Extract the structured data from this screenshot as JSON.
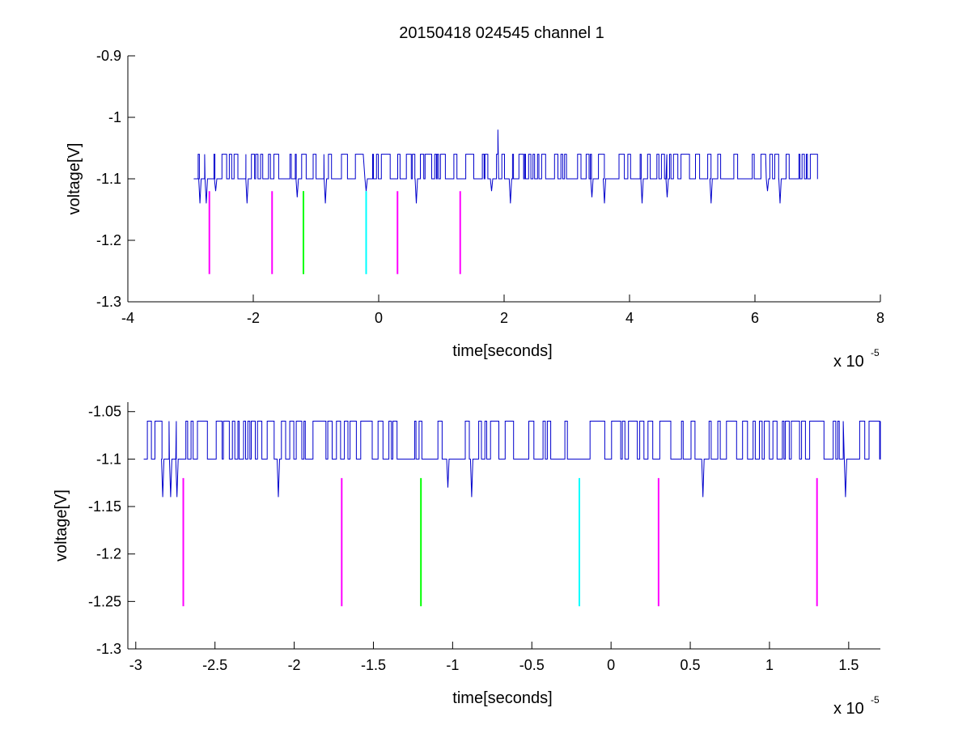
{
  "title": "20150418 024545 channel 1",
  "colors": {
    "trace": "#0000cc",
    "magenta": "#ff00ff",
    "green": "#00ff00",
    "cyan": "#00ffff",
    "axis": "#000000"
  },
  "chart_data": [
    {
      "type": "line",
      "title": "20150418 024545 channel 1",
      "xlabel": "time[seconds]",
      "ylabel": "voltage[V]",
      "x_multiplier_base": "x 10",
      "x_multiplier_exp": "-5",
      "xlim": [
        -4,
        8
      ],
      "ylim": [
        -1.3,
        -0.9
      ],
      "x_ticks": [
        -4,
        -2,
        0,
        2,
        4,
        6,
        8
      ],
      "x_tick_labels": [
        "-4",
        "-2",
        "0",
        "2",
        "4",
        "6",
        "8"
      ],
      "y_ticks": [
        -1.3,
        -1.2,
        -1.1,
        -1,
        -0.9
      ],
      "y_tick_labels": [
        "-1.3",
        "-1.2",
        "-1.1",
        "-1",
        "-0.9"
      ],
      "grid": false,
      "trace": {
        "x_start": -2.95,
        "x_end": 7.0,
        "levels": [
          -1.06,
          -1.1
        ],
        "dips": [
          [
            -2.85,
            -1.14
          ],
          [
            -2.75,
            -1.14
          ],
          [
            -2.6,
            -1.12
          ],
          [
            -2.1,
            -1.14
          ],
          [
            -1.3,
            -1.13
          ],
          [
            -0.85,
            -1.14
          ],
          [
            -0.2,
            -1.12
          ],
          [
            0.6,
            -1.14
          ],
          [
            1.8,
            -1.12
          ],
          [
            2.1,
            -1.14
          ],
          [
            3.4,
            -1.13
          ],
          [
            3.6,
            -1.14
          ],
          [
            4.2,
            -1.14
          ],
          [
            4.6,
            -1.13
          ],
          [
            5.3,
            -1.14
          ],
          [
            6.2,
            -1.12
          ],
          [
            6.4,
            -1.14
          ]
        ],
        "spikes": [
          [
            1.9,
            -1.02
          ]
        ]
      },
      "markers": [
        {
          "x": -2.7,
          "y_top": -1.12,
          "y_bottom": -1.255,
          "color": "magenta"
        },
        {
          "x": -1.7,
          "y_top": -1.12,
          "y_bottom": -1.255,
          "color": "magenta"
        },
        {
          "x": -1.2,
          "y_top": -1.12,
          "y_bottom": -1.255,
          "color": "green"
        },
        {
          "x": -0.2,
          "y_top": -1.12,
          "y_bottom": -1.255,
          "color": "cyan"
        },
        {
          "x": 0.3,
          "y_top": -1.12,
          "y_bottom": -1.255,
          "color": "magenta"
        },
        {
          "x": 1.3,
          "y_top": -1.12,
          "y_bottom": -1.255,
          "color": "magenta"
        }
      ]
    },
    {
      "type": "line",
      "title": "",
      "xlabel": "time[seconds]",
      "ylabel": "voltage[V]",
      "x_multiplier_base": "x 10",
      "x_multiplier_exp": "-5",
      "xlim": [
        -3.05,
        1.7
      ],
      "ylim": [
        -1.3,
        -1.04
      ],
      "x_ticks": [
        -3,
        -2.5,
        -2,
        -1.5,
        -1,
        -0.5,
        0,
        0.5,
        1,
        1.5
      ],
      "x_tick_labels": [
        "-3",
        "-2.5",
        "-2",
        "-1.5",
        "-1",
        "-0.5",
        "0",
        "0.5",
        "1",
        "1.5"
      ],
      "y_ticks": [
        -1.3,
        -1.25,
        -1.2,
        -1.15,
        -1.1,
        -1.05
      ],
      "y_tick_labels": [
        "-1.3",
        "-1.25",
        "-1.2",
        "-1.15",
        "-1.1",
        "-1.05"
      ],
      "grid": false,
      "trace": {
        "x_start": -2.95,
        "x_end": 1.7,
        "levels": [
          -1.06,
          -1.1
        ],
        "dips": [
          [
            -2.83,
            -1.14
          ],
          [
            -2.78,
            -1.14
          ],
          [
            -2.74,
            -1.14
          ],
          [
            -2.1,
            -1.14
          ],
          [
            -1.03,
            -1.13
          ],
          [
            -0.88,
            -1.14
          ],
          [
            0.58,
            -1.14
          ],
          [
            1.48,
            -1.14
          ]
        ],
        "spikes": []
      },
      "markers": [
        {
          "x": -2.7,
          "y_top": -1.12,
          "y_bottom": -1.255,
          "color": "magenta"
        },
        {
          "x": -1.7,
          "y_top": -1.12,
          "y_bottom": -1.255,
          "color": "magenta"
        },
        {
          "x": -1.2,
          "y_top": -1.12,
          "y_bottom": -1.255,
          "color": "green"
        },
        {
          "x": -0.2,
          "y_top": -1.12,
          "y_bottom": -1.255,
          "color": "cyan"
        },
        {
          "x": 0.3,
          "y_top": -1.12,
          "y_bottom": -1.255,
          "color": "magenta"
        },
        {
          "x": 1.3,
          "y_top": -1.12,
          "y_bottom": -1.255,
          "color": "magenta"
        }
      ]
    }
  ]
}
